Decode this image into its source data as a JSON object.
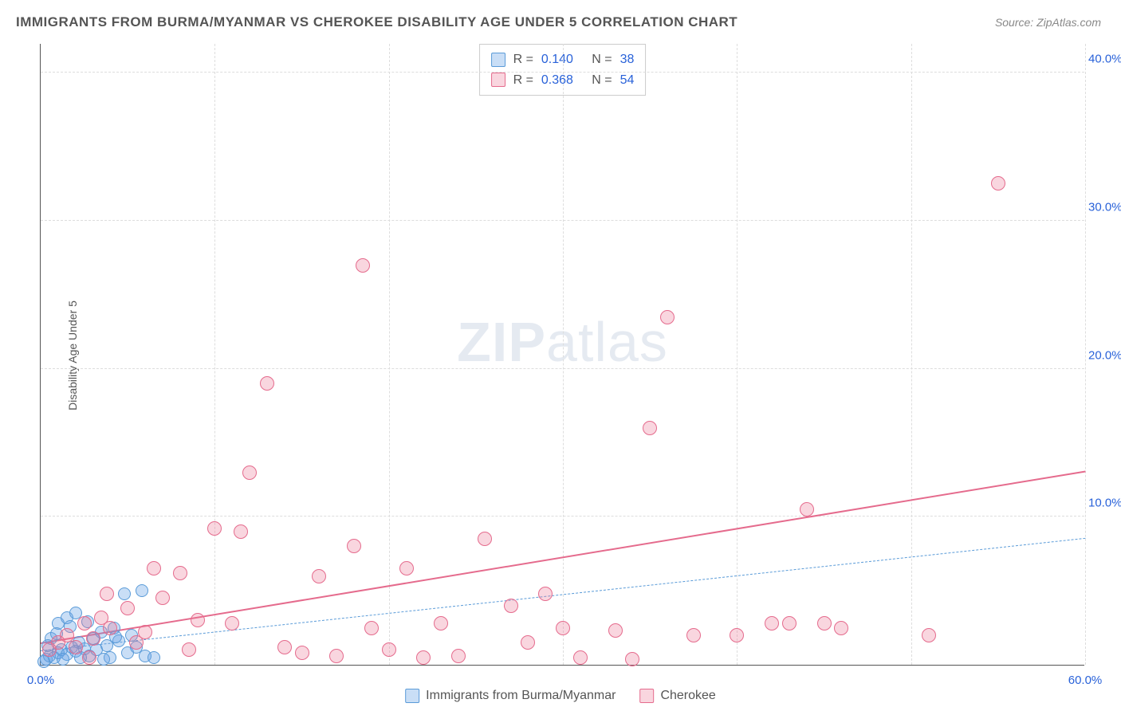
{
  "title": "IMMIGRANTS FROM BURMA/MYANMAR VS CHEROKEE DISABILITY AGE UNDER 5 CORRELATION CHART",
  "source": "Source: ZipAtlas.com",
  "y_axis_label": "Disability Age Under 5",
  "watermark_bold": "ZIP",
  "watermark_light": "atlas",
  "chart": {
    "type": "scatter",
    "xlim": [
      0,
      60
    ],
    "ylim": [
      0,
      42
    ],
    "x_ticks": [
      {
        "v": 0,
        "l": "0.0%"
      },
      {
        "v": 60,
        "l": "60.0%"
      }
    ],
    "y_ticks": [
      {
        "v": 10,
        "l": "10.0%"
      },
      {
        "v": 20,
        "l": "20.0%"
      },
      {
        "v": 30,
        "l": "30.0%"
      },
      {
        "v": 40,
        "l": "40.0%"
      }
    ],
    "grid_h": [
      10,
      20,
      30,
      40
    ],
    "grid_v": [
      10,
      20,
      30,
      40,
      50,
      60
    ],
    "grid_color": "#dddddd",
    "background_color": "#ffffff",
    "series": [
      {
        "name": "Immigrants from Burma/Myanmar",
        "label": "Immigrants from Burma/Myanmar",
        "R": "0.140",
        "N": "38",
        "fill": "rgba(100,160,230,0.35)",
        "stroke": "#5a9bd8",
        "radius": 8,
        "trend": {
          "x1": 0,
          "y1": 0.9,
          "x2": 60,
          "y2": 8.5,
          "style": "dashed",
          "color": "#5a9bd8",
          "width": 1.5
        },
        "points": [
          [
            0.3,
            0.4
          ],
          [
            0.5,
            0.6
          ],
          [
            0.8,
            0.5
          ],
          [
            1.0,
            0.8
          ],
          [
            1.2,
            1.0
          ],
          [
            1.5,
            0.7
          ],
          [
            1.8,
            1.2
          ],
          [
            2.0,
            0.9
          ],
          [
            2.2,
            1.5
          ],
          [
            2.5,
            1.1
          ],
          [
            2.8,
            0.6
          ],
          [
            3.0,
            1.8
          ],
          [
            3.2,
            1.0
          ],
          [
            3.5,
            2.2
          ],
          [
            3.8,
            1.3
          ],
          [
            4.0,
            0.5
          ],
          [
            4.2,
            2.5
          ],
          [
            4.5,
            1.6
          ],
          [
            4.8,
            4.8
          ],
          [
            5.0,
            0.8
          ],
          [
            5.2,
            2.0
          ],
          [
            5.5,
            1.2
          ],
          [
            5.8,
            5.0
          ],
          [
            6.0,
            0.6
          ],
          [
            1.0,
            2.8
          ],
          [
            1.5,
            3.2
          ],
          [
            2.0,
            3.5
          ],
          [
            0.6,
            1.8
          ],
          [
            1.3,
            0.4
          ],
          [
            2.3,
            0.5
          ],
          [
            3.6,
            0.4
          ],
          [
            4.3,
            1.9
          ],
          [
            0.4,
            1.3
          ],
          [
            0.9,
            2.1
          ],
          [
            1.7,
            2.6
          ],
          [
            2.7,
            2.9
          ],
          [
            0.2,
            0.2
          ],
          [
            6.5,
            0.5
          ]
        ]
      },
      {
        "name": "Cherokee",
        "label": "Cherokee",
        "R": "0.368",
        "N": "54",
        "fill": "rgba(235,120,150,0.30)",
        "stroke": "#e56b8d",
        "radius": 9,
        "trend": {
          "x1": 0,
          "y1": 1.4,
          "x2": 60,
          "y2": 13.0,
          "style": "solid",
          "color": "#e56b8d",
          "width": 2.5
        },
        "points": [
          [
            0.5,
            1.0
          ],
          [
            1.0,
            1.5
          ],
          [
            1.5,
            2.0
          ],
          [
            2.0,
            1.2
          ],
          [
            2.5,
            2.8
          ],
          [
            3.0,
            1.8
          ],
          [
            3.5,
            3.2
          ],
          [
            4.0,
            2.5
          ],
          [
            5.0,
            3.8
          ],
          [
            6.0,
            2.2
          ],
          [
            7.0,
            4.5
          ],
          [
            8.0,
            6.2
          ],
          [
            9.0,
            3.0
          ],
          [
            10.0,
            9.2
          ],
          [
            11.0,
            2.8
          ],
          [
            12.0,
            13.0
          ],
          [
            13.0,
            19.0
          ],
          [
            14.0,
            1.2
          ],
          [
            15.0,
            0.8
          ],
          [
            16.0,
            6.0
          ],
          [
            17.0,
            0.6
          ],
          [
            18.0,
            8.0
          ],
          [
            18.5,
            27.0
          ],
          [
            19.0,
            2.5
          ],
          [
            20.0,
            1.0
          ],
          [
            21.0,
            6.5
          ],
          [
            22.0,
            0.5
          ],
          [
            23.0,
            2.8
          ],
          [
            24.0,
            0.6
          ],
          [
            25.5,
            8.5
          ],
          [
            27.0,
            4.0
          ],
          [
            28.0,
            1.5
          ],
          [
            29.0,
            4.8
          ],
          [
            30.0,
            2.5
          ],
          [
            31.0,
            0.5
          ],
          [
            33.0,
            2.3
          ],
          [
            34.0,
            0.4
          ],
          [
            35.0,
            16.0
          ],
          [
            36.0,
            23.5
          ],
          [
            37.5,
            2.0
          ],
          [
            40.0,
            2.0
          ],
          [
            42.0,
            2.8
          ],
          [
            43.0,
            2.8
          ],
          [
            44.0,
            10.5
          ],
          [
            45.0,
            2.8
          ],
          [
            46.0,
            2.5
          ],
          [
            51.0,
            2.0
          ],
          [
            55.0,
            32.5
          ],
          [
            11.5,
            9.0
          ],
          [
            8.5,
            1.0
          ],
          [
            6.5,
            6.5
          ],
          [
            5.5,
            1.5
          ],
          [
            3.8,
            4.8
          ],
          [
            2.8,
            0.5
          ]
        ]
      }
    ]
  }
}
